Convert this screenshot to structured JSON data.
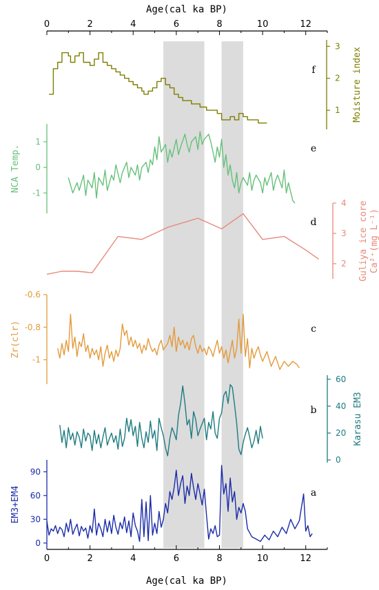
{
  "chart_data": {
    "type": "line",
    "x_axis": {
      "label": "Age(cal ka BP)",
      "range": [
        0,
        13
      ],
      "ticks": [
        0,
        2,
        4,
        6,
        8,
        10,
        12
      ],
      "position": "top and bottom"
    },
    "shaded_bands": [
      [
        5.4,
        7.3
      ],
      [
        8.1,
        9.1
      ]
    ],
    "shade_color": "#dcdcdc",
    "panels": [
      {
        "id": "f",
        "letter": "f",
        "ylabel": "Moisture index",
        "ylabel_lines": [
          "Moisture index"
        ],
        "color": "#7d7d00",
        "axis_side": "right",
        "ylim": [
          0.4,
          3.2
        ],
        "yticks": [
          1,
          2,
          3
        ],
        "step": true,
        "x": [
          0.1,
          0.3,
          0.5,
          0.7,
          1.0,
          1.1,
          1.3,
          1.5,
          1.7,
          2.0,
          2.2,
          2.4,
          2.6,
          2.8,
          3.0,
          3.2,
          3.4,
          3.6,
          3.8,
          4.0,
          4.2,
          4.4,
          4.5,
          4.7,
          4.9,
          5.1,
          5.3,
          5.5,
          5.7,
          5.9,
          6.1,
          6.3,
          6.5,
          6.7,
          6.9,
          7.1,
          7.4,
          7.7,
          7.9,
          8.1,
          8.3,
          8.5,
          8.7,
          8.9,
          9.1,
          9.3,
          9.5,
          9.8,
          10.0,
          10.2
        ],
        "values": [
          1.5,
          2.3,
          2.5,
          2.8,
          2.7,
          2.5,
          2.7,
          2.8,
          2.5,
          2.4,
          2.6,
          2.8,
          2.5,
          2.4,
          2.3,
          2.2,
          2.1,
          2.0,
          1.9,
          1.8,
          1.7,
          1.6,
          1.5,
          1.6,
          1.7,
          1.9,
          2.0,
          1.8,
          1.7,
          1.5,
          1.4,
          1.3,
          1.3,
          1.2,
          1.2,
          1.1,
          1.0,
          1.0,
          0.9,
          0.7,
          0.7,
          0.8,
          0.7,
          0.9,
          0.8,
          0.7,
          0.7,
          0.6,
          0.6,
          0.6
        ]
      },
      {
        "id": "e",
        "letter": "e",
        "ylabel": "NCA Temp.",
        "ylabel_lines": [
          "NCA Temp."
        ],
        "color": "#66c07a",
        "axis_side": "left",
        "ylim": [
          -1.8,
          1.7
        ],
        "yticks": [
          -1,
          0,
          1
        ],
        "step": false,
        "x": [
          1.0,
          1.2,
          1.4,
          1.5,
          1.7,
          1.8,
          1.9,
          2.1,
          2.2,
          2.3,
          2.4,
          2.6,
          2.7,
          2.8,
          3.0,
          3.1,
          3.2,
          3.4,
          3.5,
          3.7,
          3.8,
          3.9,
          4.1,
          4.2,
          4.3,
          4.4,
          4.6,
          4.7,
          4.8,
          4.9,
          5.0,
          5.1,
          5.2,
          5.3,
          5.5,
          5.6,
          5.7,
          5.8,
          6.0,
          6.1,
          6.2,
          6.4,
          6.5,
          6.6,
          6.7,
          6.9,
          7.0,
          7.1,
          7.2,
          7.3,
          7.5,
          7.6,
          7.7,
          7.8,
          7.9,
          8.0,
          8.1,
          8.2,
          8.3,
          8.4,
          8.5,
          8.6,
          8.7,
          8.8,
          8.9,
          9.0,
          9.1,
          9.3,
          9.4,
          9.5,
          9.6,
          9.7,
          9.9,
          10.0,
          10.1,
          10.2,
          10.4,
          10.5,
          10.6,
          10.7,
          10.9,
          11.0,
          11.1,
          11.2,
          11.4,
          11.5
        ],
        "values": [
          -0.4,
          -1.0,
          -0.6,
          -0.9,
          -0.3,
          -1.1,
          -0.5,
          -0.8,
          -0.2,
          -1.2,
          -0.4,
          -0.7,
          -0.1,
          -0.9,
          -0.3,
          -0.5,
          0.1,
          -0.6,
          -0.2,
          0.2,
          -0.4,
          0.0,
          -0.3,
          0.1,
          -0.5,
          0.0,
          0.2,
          -0.2,
          0.3,
          0.1,
          0.8,
          0.3,
          1.2,
          0.6,
          0.9,
          0.2,
          0.7,
          0.4,
          1.1,
          0.5,
          0.8,
          1.3,
          0.9,
          0.6,
          1.0,
          1.2,
          0.7,
          1.4,
          0.9,
          1.1,
          1.3,
          1.0,
          0.6,
          0.2,
          0.8,
          0.4,
          1.1,
          0.0,
          0.5,
          -0.3,
          0.1,
          -0.5,
          -0.8,
          -0.2,
          -1.0,
          -0.6,
          -0.4,
          -0.7,
          -0.2,
          -0.9,
          -0.5,
          -0.3,
          -0.6,
          -1.0,
          -0.4,
          -0.7,
          -0.2,
          -0.9,
          -0.5,
          -0.3,
          -0.8,
          -0.1,
          -1.0,
          -0.6,
          -1.3,
          -1.4
        ]
      },
      {
        "id": "d",
        "letter": "d",
        "ylabel": "Guliya ice core Ca2+(mg L-1)",
        "ylabel_lines": [
          "Guliya ice core",
          "Ca²⁺(mg L⁻¹)"
        ],
        "color": "#e8887a",
        "axis_side": "right",
        "ylim": [
          1.5,
          4.0
        ],
        "yticks": [
          2,
          3,
          4
        ],
        "step": false,
        "x": [
          0.0,
          0.7,
          1.4,
          2.1,
          2.5,
          2.9,
          3.3,
          4.4,
          5.6,
          7.0,
          8.1,
          9.1,
          10.0,
          11.0,
          12.0,
          12.6
        ],
        "values": [
          1.65,
          1.75,
          1.75,
          1.7,
          2.1,
          2.5,
          2.9,
          2.8,
          3.2,
          3.5,
          3.15,
          3.65,
          2.8,
          2.9,
          2.45,
          2.15
        ]
      },
      {
        "id": "c",
        "letter": "c",
        "ylabel": "Zr(clr)",
        "ylabel_lines": [
          "Zr(clr)"
        ],
        "color": "#e39a3a",
        "axis_side": "left",
        "ylim": [
          -1.15,
          -0.6
        ],
        "yticks": [
          -0.6,
          -0.8,
          -1.0
        ],
        "step": false,
        "x": [
          0.5,
          0.6,
          0.7,
          0.8,
          0.9,
          1.0,
          1.1,
          1.2,
          1.3,
          1.4,
          1.5,
          1.6,
          1.7,
          1.8,
          1.9,
          2.0,
          2.1,
          2.2,
          2.3,
          2.4,
          2.5,
          2.6,
          2.7,
          2.8,
          2.9,
          3.0,
          3.1,
          3.2,
          3.3,
          3.4,
          3.5,
          3.6,
          3.7,
          3.8,
          3.9,
          4.0,
          4.1,
          4.2,
          4.3,
          4.4,
          4.5,
          4.6,
          4.7,
          4.8,
          4.9,
          5.0,
          5.1,
          5.2,
          5.3,
          5.4,
          5.5,
          5.6,
          5.7,
          5.8,
          5.9,
          6.0,
          6.1,
          6.2,
          6.3,
          6.4,
          6.5,
          6.6,
          6.7,
          6.8,
          6.9,
          7.0,
          7.1,
          7.2,
          7.3,
          7.4,
          7.5,
          7.6,
          7.7,
          7.8,
          7.9,
          8.0,
          8.1,
          8.2,
          8.3,
          8.4,
          8.5,
          8.6,
          8.7,
          8.8,
          8.9,
          9.0,
          9.1,
          9.2,
          9.3,
          9.4,
          9.5,
          9.6,
          9.7,
          9.8,
          9.9,
          10.0,
          10.2,
          10.4,
          10.6,
          10.8,
          11.0,
          11.2,
          11.4,
          11.6,
          11.7
        ],
        "values": [
          -0.93,
          -0.99,
          -0.9,
          -0.97,
          -0.88,
          -0.95,
          -0.72,
          -0.93,
          -0.86,
          -0.98,
          -0.89,
          -0.92,
          -0.84,
          -0.95,
          -0.91,
          -0.99,
          -0.93,
          -0.97,
          -0.94,
          -1.0,
          -0.92,
          -1.04,
          -0.96,
          -0.91,
          -0.99,
          -0.95,
          -1.01,
          -0.94,
          -0.98,
          -0.93,
          -0.78,
          -0.85,
          -0.82,
          -0.91,
          -0.86,
          -0.92,
          -0.88,
          -0.93,
          -0.9,
          -0.96,
          -0.91,
          -0.94,
          -0.87,
          -0.92,
          -0.95,
          -0.93,
          -0.97,
          -0.91,
          -0.88,
          -0.94,
          -0.92,
          -0.9,
          -0.85,
          -0.92,
          -0.8,
          -0.95,
          -0.86,
          -0.91,
          -0.88,
          -0.93,
          -0.89,
          -0.94,
          -0.87,
          -0.85,
          -0.92,
          -0.96,
          -0.91,
          -0.95,
          -0.93,
          -0.97,
          -0.92,
          -0.94,
          -0.98,
          -0.93,
          -0.88,
          -0.96,
          -0.92,
          -0.99,
          -0.94,
          -1.02,
          -0.95,
          -0.88,
          -0.99,
          -0.93,
          -0.75,
          -0.96,
          -0.72,
          -0.98,
          -0.87,
          -1.05,
          -0.93,
          -0.99,
          -0.95,
          -0.92,
          -0.97,
          -1.01,
          -0.95,
          -1.04,
          -0.98,
          -1.06,
          -1.01,
          -1.04,
          -1.01,
          -1.03,
          -1.05
        ]
      },
      {
        "id": "b",
        "letter": "b",
        "ylabel": "Karasu EM3",
        "ylabel_lines": [
          "Karasu EM3"
        ],
        "color": "#1e7b80",
        "axis_side": "right",
        "ylim": [
          -2,
          63
        ],
        "yticks": [
          0,
          20,
          40,
          60
        ],
        "step": false,
        "x": [
          0.6,
          0.7,
          0.8,
          0.9,
          1.0,
          1.1,
          1.2,
          1.3,
          1.4,
          1.5,
          1.6,
          1.7,
          1.8,
          1.9,
          2.0,
          2.1,
          2.2,
          2.3,
          2.4,
          2.5,
          2.6,
          2.7,
          2.8,
          2.9,
          3.0,
          3.1,
          3.2,
          3.3,
          3.4,
          3.5,
          3.6,
          3.7,
          3.8,
          3.9,
          4.0,
          4.1,
          4.2,
          4.3,
          4.4,
          4.5,
          4.6,
          4.7,
          4.8,
          4.9,
          5.0,
          5.1,
          5.2,
          5.3,
          5.4,
          5.5,
          5.6,
          5.7,
          5.8,
          5.9,
          6.0,
          6.1,
          6.2,
          6.3,
          6.4,
          6.5,
          6.6,
          6.7,
          6.8,
          6.9,
          7.0,
          7.1,
          7.2,
          7.3,
          7.4,
          7.5,
          7.6,
          7.7,
          7.8,
          7.9,
          8.0,
          8.1,
          8.2,
          8.3,
          8.4,
          8.5,
          8.6,
          8.7,
          8.8,
          8.9,
          9.0,
          9.1,
          9.2,
          9.3,
          9.4,
          9.5,
          9.6,
          9.7,
          9.8,
          9.9,
          10.0
        ],
        "values": [
          26,
          13,
          22,
          9,
          24,
          15,
          20,
          11,
          21,
          17,
          9,
          23,
          14,
          20,
          18,
          7,
          22,
          12,
          19,
          9,
          17,
          24,
          11,
          16,
          20,
          13,
          18,
          8,
          23,
          10,
          16,
          31,
          21,
          30,
          18,
          25,
          10,
          28,
          16,
          9,
          21,
          13,
          29,
          16,
          22,
          7,
          31,
          24,
          18,
          9,
          3,
          16,
          24,
          20,
          15,
          33,
          42,
          55,
          42,
          26,
          30,
          16,
          36,
          30,
          18,
          23,
          27,
          31,
          15,
          28,
          23,
          36,
          20,
          16,
          31,
          35,
          48,
          51,
          42,
          56,
          54,
          41,
          27,
          8,
          4,
          13,
          19,
          24,
          17,
          9,
          14,
          22,
          12,
          25,
          16
        ]
      },
      {
        "id": "a",
        "letter": "a",
        "ylabel": "EM3+EM4",
        "ylabel_lines": [
          "EM3+EM4"
        ],
        "color": "#1a2ba8",
        "axis_side": "left",
        "ylim": [
          -8,
          105
        ],
        "yticks": [
          0,
          30,
          60,
          90
        ],
        "step": false,
        "x": [
          0.0,
          0.1,
          0.2,
          0.3,
          0.4,
          0.5,
          0.6,
          0.7,
          0.8,
          0.9,
          1.0,
          1.1,
          1.2,
          1.3,
          1.4,
          1.5,
          1.6,
          1.7,
          1.8,
          1.9,
          2.0,
          2.1,
          2.2,
          2.3,
          2.4,
          2.5,
          2.6,
          2.7,
          2.8,
          2.9,
          3.0,
          3.1,
          3.2,
          3.3,
          3.4,
          3.5,
          3.6,
          3.7,
          3.8,
          3.9,
          4.0,
          4.1,
          4.2,
          4.3,
          4.4,
          4.5,
          4.6,
          4.7,
          4.8,
          4.9,
          5.0,
          5.1,
          5.2,
          5.3,
          5.4,
          5.5,
          5.6,
          5.7,
          5.8,
          5.9,
          6.0,
          6.1,
          6.2,
          6.3,
          6.4,
          6.5,
          6.6,
          6.7,
          6.8,
          6.9,
          7.0,
          7.1,
          7.2,
          7.3,
          7.4,
          7.5,
          7.6,
          7.7,
          7.8,
          7.9,
          8.0,
          8.1,
          8.2,
          8.3,
          8.4,
          8.5,
          8.6,
          8.7,
          8.8,
          8.9,
          9.0,
          9.1,
          9.2,
          9.3,
          9.5,
          9.7,
          9.9,
          10.1,
          10.3,
          10.5,
          10.7,
          10.9,
          11.1,
          11.3,
          11.5,
          11.7,
          11.9,
          12.0,
          12.1,
          12.2,
          12.3
        ],
        "values": [
          28,
          10,
          18,
          15,
          22,
          12,
          20,
          17,
          8,
          25,
          14,
          30,
          11,
          18,
          24,
          9,
          21,
          15,
          19,
          6,
          22,
          13,
          43,
          10,
          25,
          18,
          8,
          30,
          14,
          28,
          12,
          35,
          20,
          11,
          26,
          18,
          33,
          13,
          28,
          8,
          38,
          22,
          15,
          2,
          55,
          8,
          52,
          3,
          60,
          10,
          25,
          12,
          40,
          20,
          30,
          50,
          38,
          65,
          55,
          70,
          92,
          60,
          75,
          85,
          50,
          72,
          60,
          88,
          70,
          55,
          75,
          62,
          48,
          68,
          35,
          5,
          18,
          12,
          22,
          8,
          10,
          98,
          62,
          75,
          40,
          82,
          52,
          65,
          30,
          45,
          38,
          50,
          40,
          18,
          8,
          5,
          2,
          10,
          4,
          15,
          8,
          20,
          12,
          30,
          18,
          28,
          62,
          15,
          22,
          8,
          12
        ]
      }
    ]
  }
}
